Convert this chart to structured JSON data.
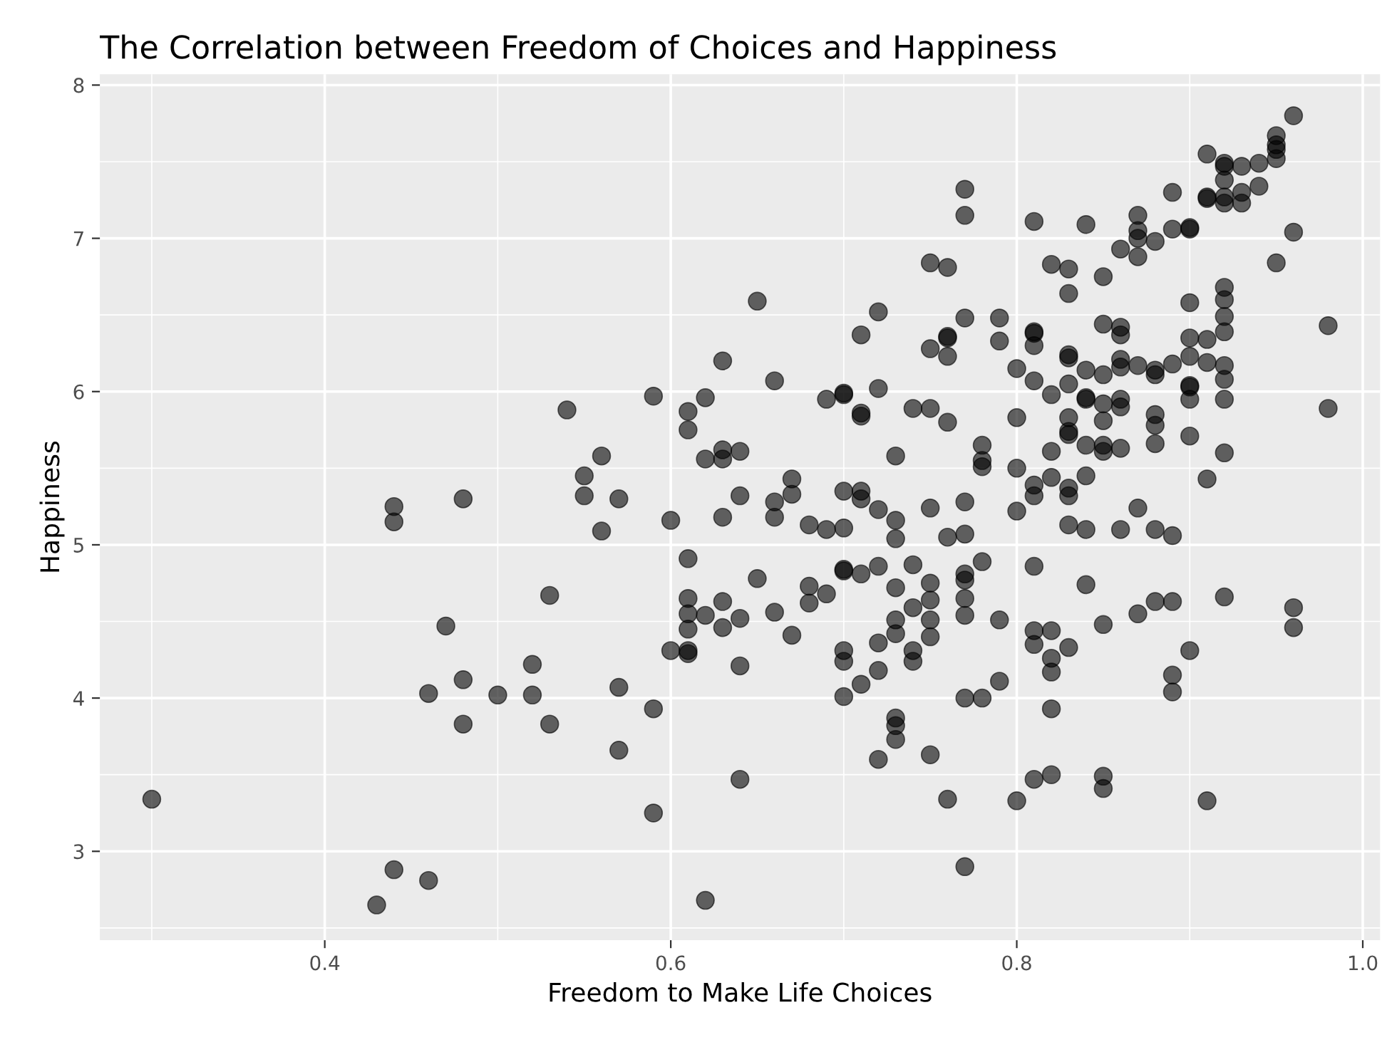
{
  "chart_data": {
    "type": "scatter",
    "title": "The Correlation between Freedom of Choices and Happiness",
    "xlabel": "Freedom to Make Life Choices",
    "ylabel": "Happiness",
    "xlim": [
      0.27,
      1.01
    ],
    "ylim": [
      2.42,
      8.07
    ],
    "xticks": [
      0.4,
      0.6,
      0.8,
      {
        "value": 1.0,
        "label": "1.0"
      }
    ],
    "yticks": [
      3,
      4,
      5,
      6,
      7,
      8
    ],
    "grid": true,
    "marker": "circle",
    "series": [
      {
        "color": "#000000",
        "x": [
          0.3,
          0.59,
          0.54,
          0.56,
          0.55,
          0.55,
          0.57,
          0.44,
          0.44,
          0.48,
          0.6,
          0.56,
          0.61,
          0.53,
          0.47,
          0.61,
          0.6,
          0.52,
          0.48,
          0.46,
          0.5,
          0.52,
          0.57,
          0.59,
          0.48,
          0.53,
          0.57,
          0.59,
          0.44,
          0.46,
          0.43,
          0.77,
          0.81,
          0.82,
          0.75,
          0.76,
          0.65,
          0.72,
          0.71,
          0.77,
          0.79,
          0.76,
          0.76,
          0.75,
          0.76,
          0.79,
          0.81,
          0.81,
          0.8,
          0.81,
          0.82,
          0.63,
          0.66,
          0.62,
          0.61,
          0.61,
          0.69,
          0.7,
          0.7,
          0.72,
          0.71,
          0.71,
          0.74,
          0.75,
          0.76,
          0.8,
          0.78,
          0.78,
          0.78,
          0.8,
          0.82,
          0.73,
          0.63,
          0.62,
          0.63,
          0.64,
          0.67,
          0.67,
          0.64,
          0.66,
          0.66,
          0.63,
          0.7,
          0.71,
          0.71,
          0.72,
          0.73,
          0.73,
          0.7,
          0.68,
          0.69,
          0.75,
          0.77,
          0.8,
          0.76,
          0.77,
          0.81,
          0.65,
          0.7,
          0.7,
          0.71,
          0.72,
          0.74,
          0.73,
          0.68,
          0.69,
          0.68,
          0.77,
          0.78,
          0.77,
          0.77,
          0.75,
          0.75,
          0.74,
          0.75,
          0.77,
          0.79,
          0.73,
          0.73,
          0.75,
          0.74,
          0.74,
          0.61,
          0.61,
          0.62,
          0.63,
          0.64,
          0.66,
          0.63,
          0.67,
          0.61,
          0.61,
          0.64,
          0.7,
          0.7,
          0.72,
          0.72,
          0.71,
          0.79,
          0.81,
          0.82,
          0.81,
          0.82,
          0.82,
          0.7,
          0.77,
          0.78,
          0.82,
          0.73,
          0.73,
          0.73,
          0.72,
          0.75,
          0.64,
          0.76,
          0.8,
          0.81,
          0.82,
          0.77,
          0.62,
          0.77,
          0.96,
          0.95,
          0.95,
          0.95,
          0.95,
          0.91,
          0.92,
          0.92,
          0.93,
          0.94,
          0.92,
          0.94,
          0.93,
          0.91,
          0.91,
          0.92,
          0.93,
          0.92,
          0.89,
          0.96,
          0.95,
          0.87,
          0.9,
          0.9,
          0.89,
          0.87,
          0.88,
          0.87,
          0.86,
          0.87,
          0.84,
          0.83,
          0.85,
          0.83,
          0.92,
          0.92,
          0.9,
          0.92,
          0.92,
          0.98,
          0.81,
          0.85,
          0.86,
          0.86,
          0.9,
          0.91,
          0.9,
          0.91,
          0.92,
          0.92,
          0.92,
          0.89,
          0.88,
          0.88,
          0.87,
          0.86,
          0.86,
          0.85,
          0.83,
          0.83,
          0.84,
          0.83,
          0.84,
          0.84,
          0.85,
          0.85,
          0.86,
          0.86,
          0.88,
          0.88,
          0.9,
          0.9,
          0.9,
          0.9,
          0.92,
          0.98,
          0.88,
          0.83,
          0.83,
          0.83,
          0.84,
          0.85,
          0.86,
          0.85,
          0.91,
          0.87,
          0.84,
          0.82,
          0.81,
          0.81,
          0.83,
          0.83,
          0.83,
          0.84,
          0.86,
          0.88,
          0.89,
          0.84,
          0.85,
          0.87,
          0.88,
          0.89,
          0.92,
          0.96,
          0.96,
          0.9,
          0.89,
          0.89,
          0.83,
          0.85,
          0.85,
          0.91
        ],
        "values": [
          3.34,
          5.97,
          5.88,
          5.58,
          5.45,
          5.32,
          5.3,
          5.25,
          5.15,
          5.3,
          5.16,
          5.09,
          4.91,
          4.67,
          4.47,
          4.45,
          4.31,
          4.22,
          4.12,
          4.03,
          4.02,
          4.02,
          4.07,
          3.93,
          3.83,
          3.83,
          3.66,
          3.25,
          2.88,
          2.81,
          2.65,
          7.15,
          7.11,
          6.83,
          6.84,
          6.81,
          6.59,
          6.52,
          6.37,
          6.48,
          6.48,
          6.36,
          6.35,
          6.28,
          6.23,
          6.33,
          6.38,
          6.3,
          6.15,
          6.07,
          5.98,
          6.2,
          6.07,
          5.96,
          5.87,
          5.75,
          5.95,
          5.99,
          5.98,
          6.02,
          5.84,
          5.86,
          5.89,
          5.89,
          5.8,
          5.83,
          5.65,
          5.55,
          5.51,
          5.5,
          5.61,
          5.58,
          5.62,
          5.56,
          5.56,
          5.61,
          5.43,
          5.33,
          5.32,
          5.28,
          5.18,
          5.18,
          5.35,
          5.35,
          5.3,
          5.23,
          5.16,
          5.04,
          5.11,
          5.13,
          5.1,
          5.24,
          5.28,
          5.22,
          5.05,
          5.07,
          4.86,
          4.78,
          4.84,
          4.83,
          4.81,
          4.86,
          4.87,
          4.72,
          4.73,
          4.68,
          4.62,
          4.81,
          4.89,
          4.77,
          4.65,
          4.75,
          4.64,
          4.59,
          4.51,
          4.54,
          4.51,
          4.51,
          4.42,
          4.4,
          4.31,
          4.24,
          4.65,
          4.55,
          4.54,
          4.63,
          4.52,
          4.56,
          4.46,
          4.41,
          4.31,
          4.29,
          4.21,
          4.31,
          4.24,
          4.36,
          4.18,
          4.09,
          4.11,
          4.44,
          4.44,
          4.35,
          4.26,
          4.17,
          4.01,
          4.0,
          4.0,
          3.93,
          3.87,
          3.82,
          3.73,
          3.6,
          3.63,
          3.47,
          3.34,
          3.33,
          3.47,
          3.5,
          2.9,
          2.68,
          7.32,
          7.8,
          7.67,
          7.61,
          7.58,
          7.52,
          7.55,
          7.47,
          7.49,
          7.47,
          7.49,
          7.38,
          7.34,
          7.3,
          7.27,
          7.26,
          7.27,
          7.23,
          7.23,
          7.3,
          7.04,
          6.84,
          7.15,
          7.07,
          7.06,
          7.06,
          7.05,
          6.98,
          7.0,
          6.93,
          6.88,
          7.09,
          6.8,
          6.75,
          6.64,
          6.68,
          6.6,
          6.58,
          6.49,
          6.39,
          6.43,
          6.39,
          6.44,
          6.42,
          6.37,
          6.35,
          6.34,
          6.23,
          6.19,
          6.17,
          6.08,
          5.95,
          6.18,
          6.11,
          6.14,
          6.17,
          6.21,
          6.16,
          6.11,
          6.22,
          6.24,
          6.14,
          6.05,
          5.96,
          5.95,
          5.92,
          5.81,
          5.95,
          5.9,
          5.85,
          5.78,
          6.03,
          6.04,
          5.95,
          5.71,
          5.6,
          5.89,
          5.66,
          5.74,
          5.72,
          5.83,
          5.65,
          5.65,
          5.63,
          5.61,
          5.43,
          5.24,
          5.45,
          5.44,
          5.39,
          5.32,
          5.32,
          5.37,
          5.13,
          5.1,
          5.1,
          5.1,
          5.06,
          4.74,
          4.48,
          4.55,
          4.63,
          4.63,
          4.66,
          4.59,
          4.46,
          4.31,
          4.15,
          4.04,
          4.33,
          3.49,
          3.41,
          3.33
        ]
      }
    ]
  }
}
